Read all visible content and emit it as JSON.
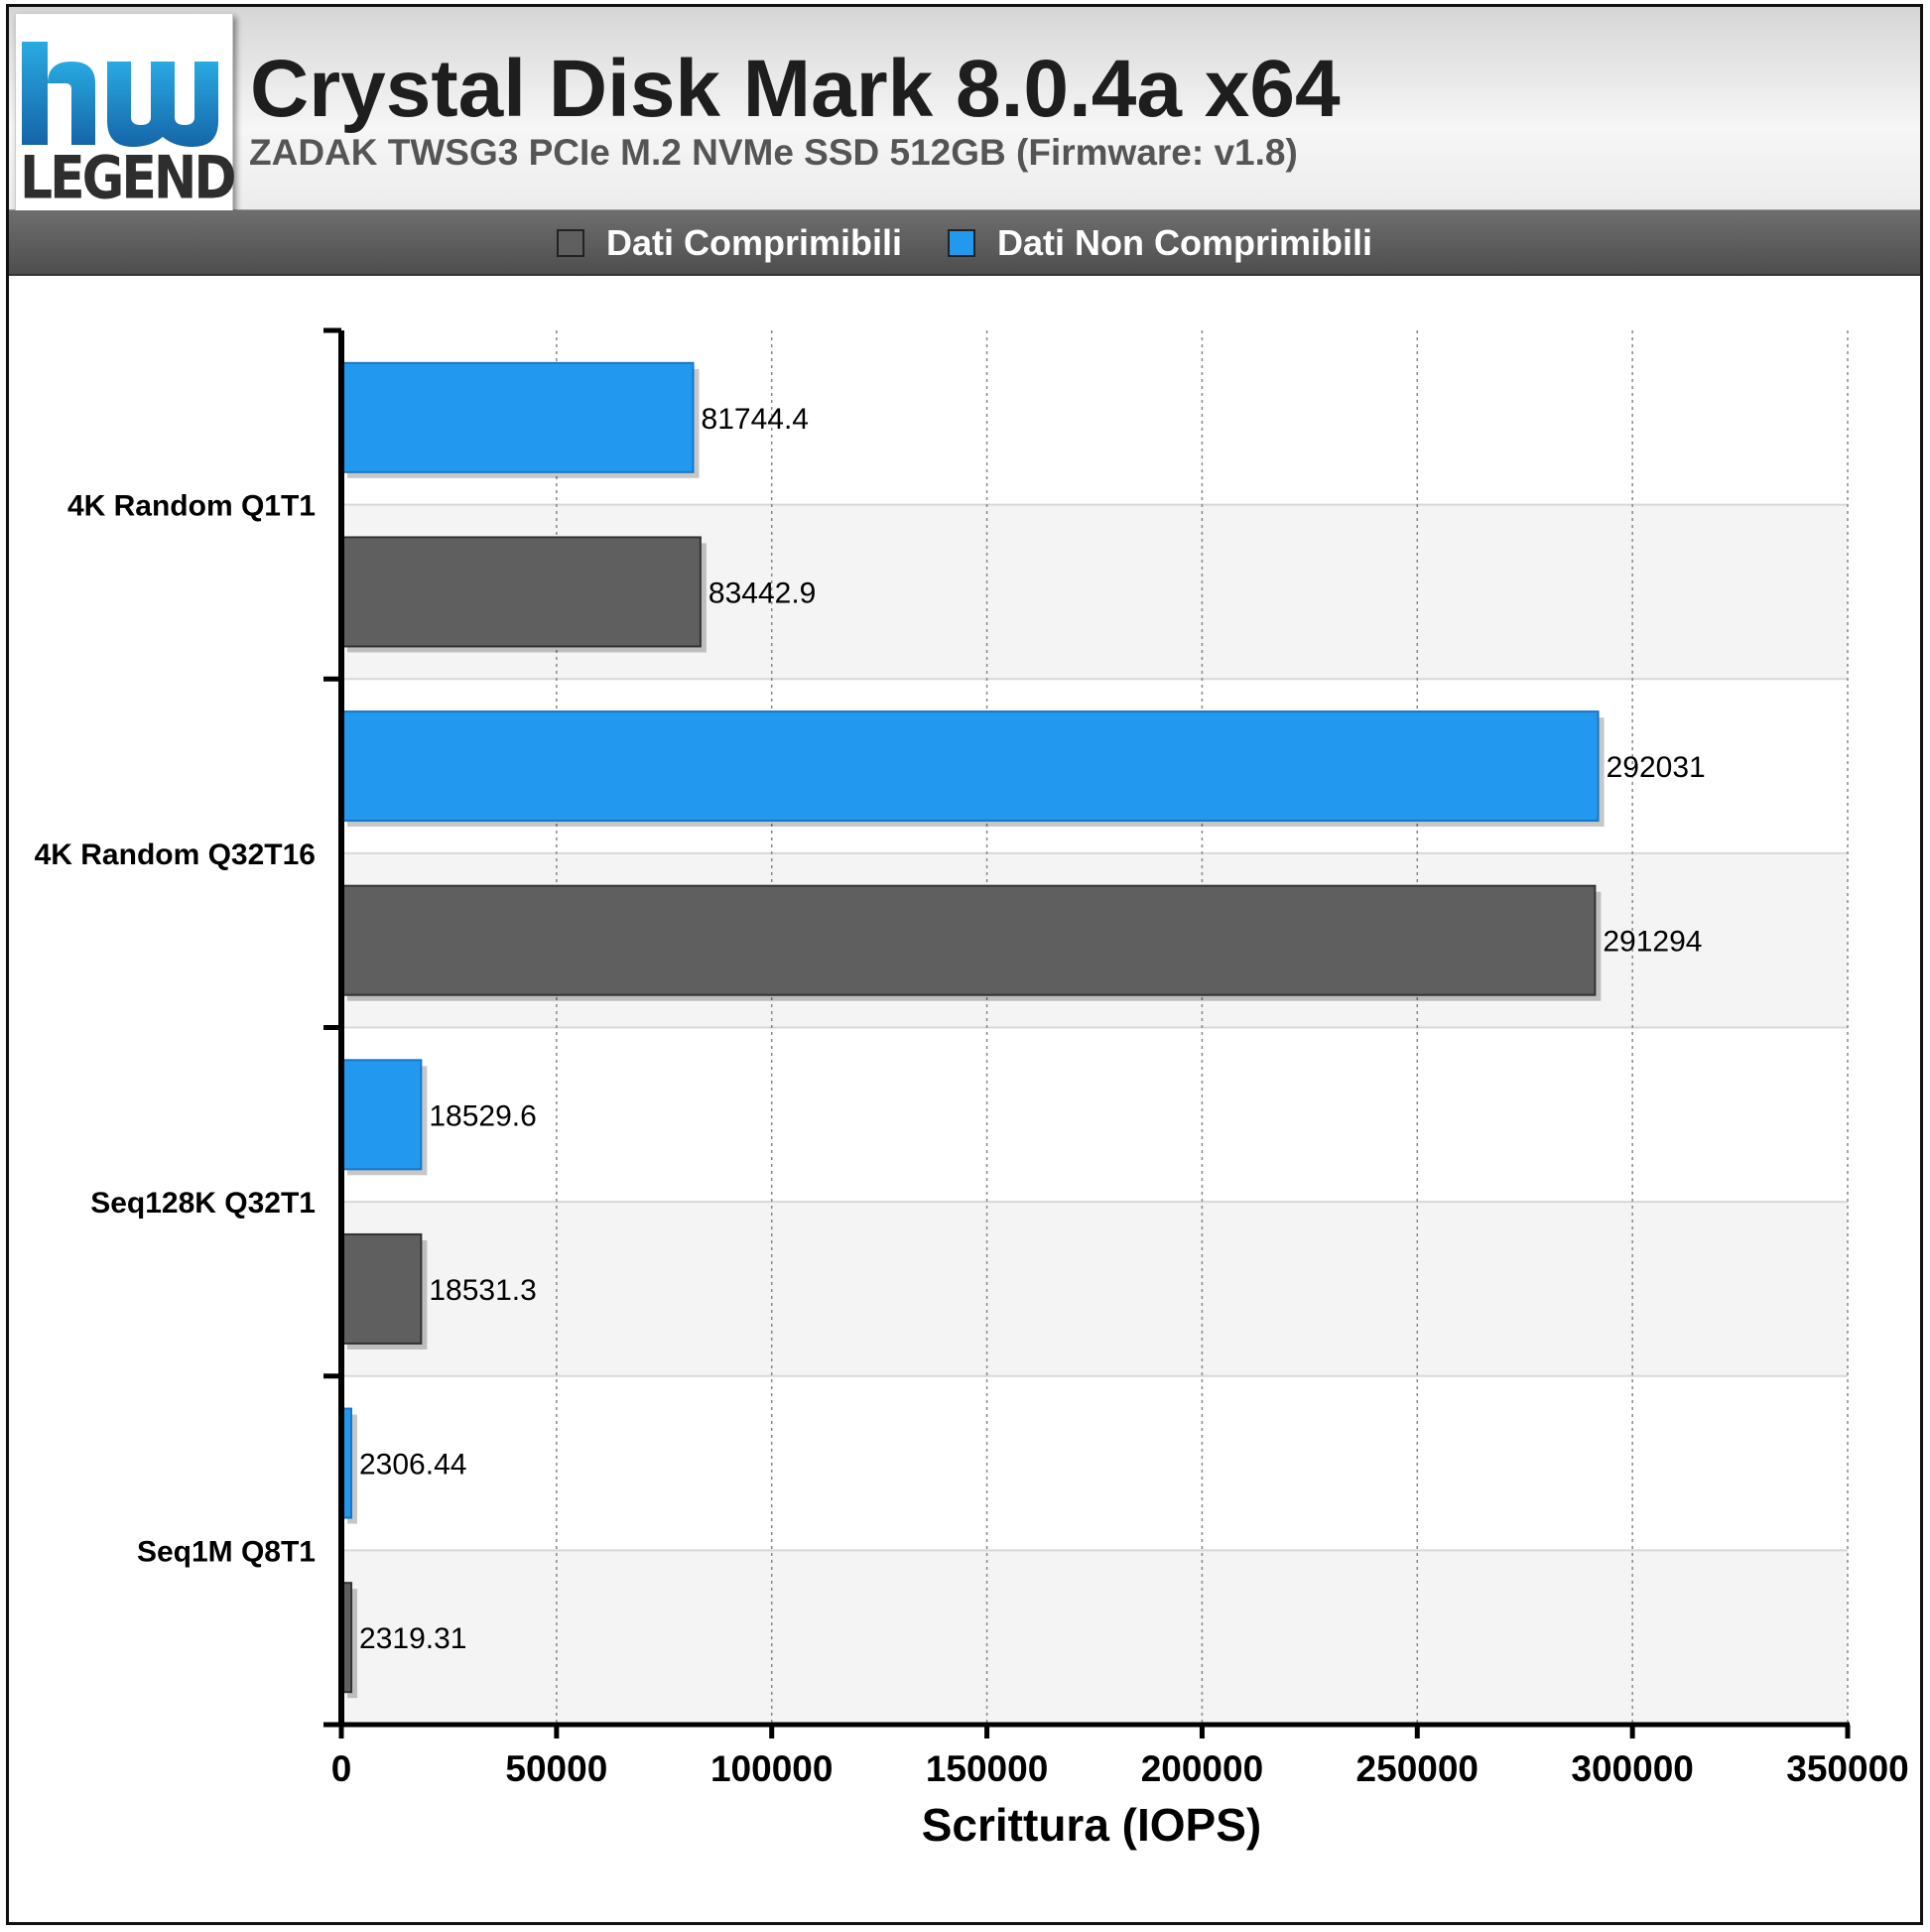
{
  "header": {
    "title": "Crystal Disk Mark 8.0.4a x64",
    "subtitle": "ZADAK TWSG3 PCIe M.2 NVMe SSD 512GB (Firmware: v1.8)",
    "logo_text": "LEGEND",
    "logo_colors": [
      "#1565a8",
      "#29aae2"
    ]
  },
  "legend": {
    "items": [
      {
        "label": "Dati Comprimibili",
        "color": "#5f5f5f"
      },
      {
        "label": "Dati Non Comprimibili",
        "color": "#2299ee"
      }
    ]
  },
  "chart_data": {
    "type": "bar",
    "orientation": "horizontal",
    "categories": [
      "4K Random Q1T1",
      "4K Random Q32T16",
      "Seq128K Q32T1",
      "Seq1M Q8T1"
    ],
    "series": [
      {
        "name": "Dati Non Comprimibili",
        "color": "#2299ee",
        "values": [
          81744.4,
          292031,
          18529.6,
          2306.44
        ],
        "labels": [
          "81744.4",
          "292031",
          "18529.6",
          "2306.44"
        ]
      },
      {
        "name": "Dati Comprimibili",
        "color": "#5f5f5f",
        "values": [
          83442.9,
          291294,
          18531.3,
          2319.31
        ],
        "labels": [
          "83442.9",
          "291294",
          "18531.3",
          "2319.31"
        ]
      }
    ],
    "xlabel": "Scrittura (IOPS)",
    "ylabel": "",
    "xlim": [
      0,
      350000
    ],
    "xticks": [
      0,
      50000,
      100000,
      150000,
      200000,
      250000,
      300000,
      350000
    ],
    "xtick_labels": [
      "0",
      "50000",
      "100000",
      "150000",
      "200000",
      "250000",
      "300000",
      "350000"
    ],
    "grid": "vertical dotted",
    "legend_position": "top"
  }
}
